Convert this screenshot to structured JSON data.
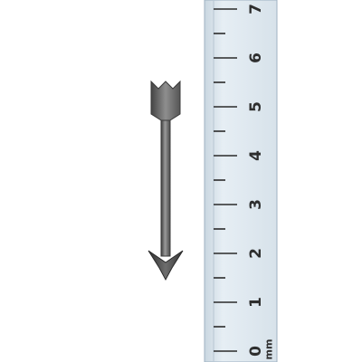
{
  "ruler": {
    "unit": "mm",
    "labels": [
      "0",
      "1",
      "2",
      "3",
      "4",
      "5",
      "6",
      "7"
    ],
    "visible_range": [
      0,
      7.3
    ],
    "colors": {
      "body": "#dde8f0",
      "edge": "#9fb2c2",
      "marks": "#2b2b2b"
    }
  },
  "arrow": {
    "direction": "down",
    "tail_reading": 5.35,
    "tip_reading": 1.75,
    "colors": {
      "shaft_dark": "#4a4a4a",
      "shaft_light": "#8a8a8a",
      "outline": "#3a3a3a"
    }
  }
}
